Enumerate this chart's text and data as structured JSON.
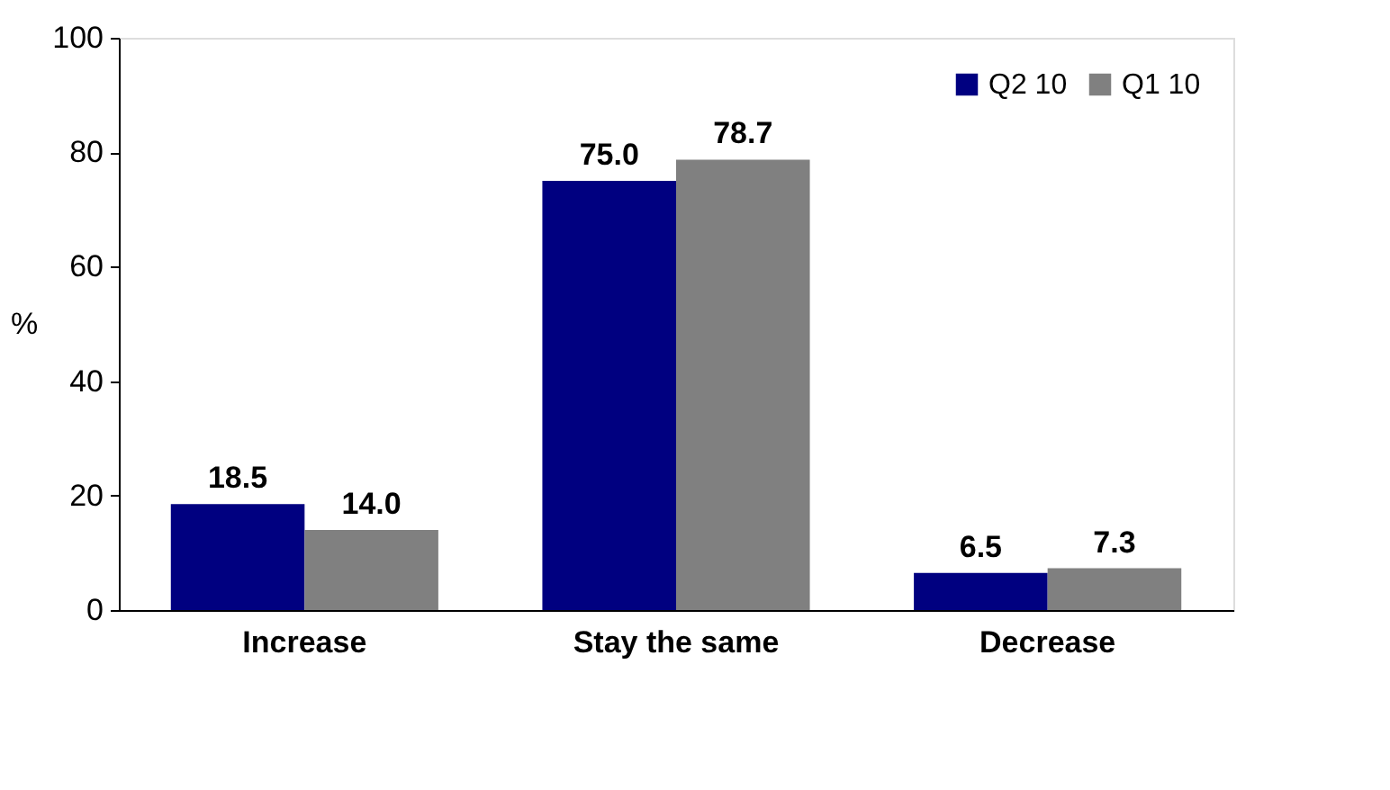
{
  "chart_data": {
    "type": "bar",
    "categories": [
      "Increase",
      "Stay the same",
      "Decrease"
    ],
    "ylabel": "%",
    "series": [
      {
        "name": "Q2 10",
        "color": "#000080",
        "values": [
          18.5,
          75.0,
          6.5
        ],
        "value_labels": [
          "18.5",
          "75.0",
          "6.5"
        ]
      },
      {
        "name": "Q1 10",
        "color": "#808080",
        "values": [
          14.0,
          78.7,
          7.3
        ],
        "value_labels": [
          "14.0",
          "78.7",
          "7.3"
        ]
      }
    ],
    "ylim": [
      0,
      100
    ],
    "yticks": [
      0,
      20,
      40,
      60,
      80,
      100
    ],
    "grid": false,
    "legend": "top right"
  }
}
